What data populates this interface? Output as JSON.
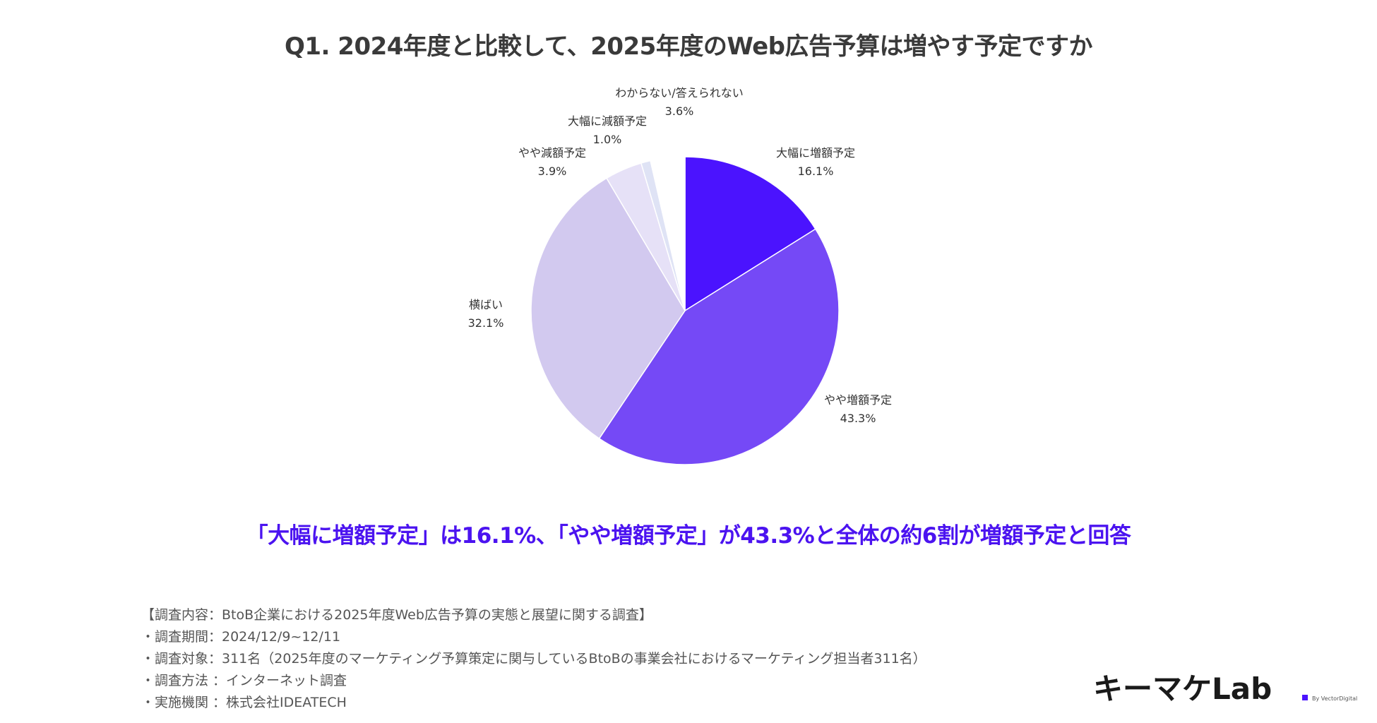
{
  "title": "Q1. 2024年度と比較して、2025年度のWeb広告予算は増やす予定ですか",
  "chart_data": {
    "type": "pie",
    "slices": [
      {
        "label": "大幅に増額予定",
        "value": 16.1,
        "display": "16.1%",
        "color": "#4b13fe"
      },
      {
        "label": "やや増額予定",
        "value": 43.3,
        "display": "43.3%",
        "color": "#7549f6"
      },
      {
        "label": "横ばい",
        "value": 32.1,
        "display": "32.1%",
        "color": "#d2c9ef"
      },
      {
        "label": "やや減額予定",
        "value": 3.9,
        "display": "3.9%",
        "color": "#e6e1f7"
      },
      {
        "label": "大幅に減額予定",
        "value": 1.0,
        "display": "1.0%",
        "color": "#dfe3f5"
      },
      {
        "label": "わからない/答えられない",
        "value": 3.6,
        "display": "3.6%",
        "color": "#ffffff"
      }
    ]
  },
  "headline": "「大幅に増額予定」は16.1%、「やや増額予定」が43.3%と全体の約6割が増額予定と回答",
  "notes": [
    "【調査内容：BtoB企業における2025年度Web広告予算の実態と展望に関する調査】",
    "・調査期間：2024/12/9~12/11",
    "・調査対象：311名（2025年度のマーケティング予算策定に関与しているBtoBの事業会社におけるマーケティング担当者311名）",
    "・調査方法 ：インターネット調査",
    "・実施機関 ：株式会社IDEATECH"
  ],
  "logo": {
    "text": "キーマケLab",
    "sub": "By VectorDigital",
    "accent_color": "#4b13fe"
  }
}
